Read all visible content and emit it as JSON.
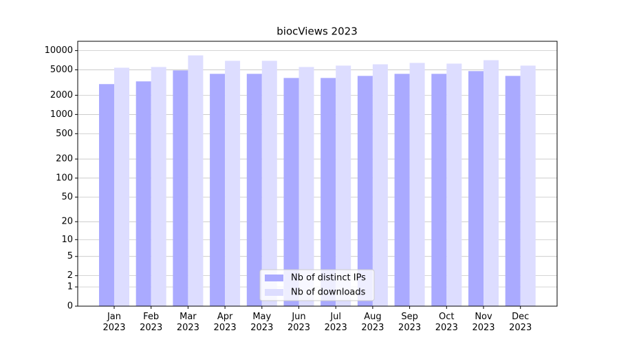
{
  "chart_data": {
    "type": "bar",
    "title": "biocViews 2023",
    "categories": [
      "Jan 2023",
      "Feb 2023",
      "Mar 2023",
      "Apr 2023",
      "May 2023",
      "Jun 2023",
      "Jul 2023",
      "Aug 2023",
      "Sep 2023",
      "Oct 2023",
      "Nov 2023",
      "Dec 2023"
    ],
    "series": [
      {
        "name": "Nb of distinct IPs",
        "color": "#aaaaff",
        "values": [
          2990,
          3300,
          4900,
          4330,
          4330,
          3730,
          3730,
          4020,
          4330,
          4330,
          4780,
          4020
        ]
      },
      {
        "name": "Nb of downloads",
        "color": "#ddddff",
        "values": [
          5400,
          5540,
          8420,
          6920,
          6920,
          5540,
          5820,
          6110,
          6420,
          6260,
          7080,
          5820
        ]
      }
    ],
    "yscale": "log1p",
    "ylim": [
      0,
      14000
    ],
    "yticks": [
      0,
      1,
      2,
      5,
      10,
      20,
      50,
      100,
      200,
      500,
      1000,
      2000,
      5000,
      10000
    ],
    "grid": true,
    "legend": "lower center"
  }
}
